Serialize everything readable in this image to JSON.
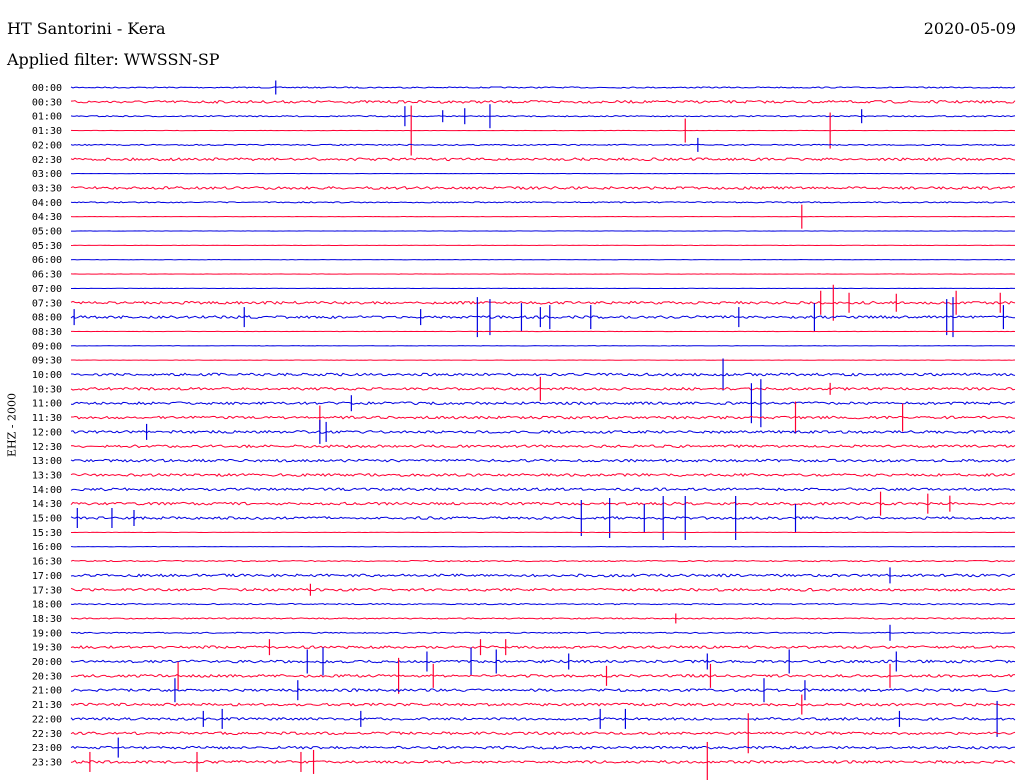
{
  "header": {
    "title": "HT Santorini - Kera",
    "date": "2020-05-09",
    "filter": "Applied filter: WWSSN-SP"
  },
  "chart_data": {
    "type": "line",
    "title": "HT Santorini - Kera",
    "channel_label": "EHZ - 2000",
    "x_unit": "minutes",
    "xlim": [
      0,
      30
    ],
    "row_colors": [
      "#0000e0",
      "#ff0033"
    ],
    "rows": [
      {
        "label": "00:00",
        "activity": "quiet",
        "events": [
          {
            "t": 6.5,
            "amp": 7
          }
        ]
      },
      {
        "label": "00:30",
        "activity": "noisy",
        "events": []
      },
      {
        "label": "01:00",
        "activity": "quiet",
        "events": [
          {
            "t": 10.6,
            "amp": 10
          },
          {
            "t": 11.8,
            "amp": 6
          },
          {
            "t": 12.5,
            "amp": 8
          },
          {
            "t": 13.3,
            "amp": 12
          },
          {
            "t": 25.1,
            "amp": 7
          }
        ]
      },
      {
        "label": "01:30",
        "activity": "flat",
        "events": [
          {
            "t": 10.8,
            "amp": 25
          },
          {
            "t": 19.5,
            "amp": 12
          },
          {
            "t": 24.1,
            "amp": 18
          }
        ]
      },
      {
        "label": "02:00",
        "activity": "quiet",
        "events": [
          {
            "t": 19.9,
            "amp": 7
          }
        ]
      },
      {
        "label": "02:30",
        "activity": "noisy",
        "events": []
      },
      {
        "label": "03:00",
        "activity": "flat",
        "events": []
      },
      {
        "label": "03:30",
        "activity": "noisy",
        "events": []
      },
      {
        "label": "04:00",
        "activity": "quiet",
        "events": []
      },
      {
        "label": "04:30",
        "activity": "flat",
        "events": [
          {
            "t": 23.2,
            "amp": 12
          }
        ]
      },
      {
        "label": "05:00",
        "activity": "flat",
        "events": []
      },
      {
        "label": "05:30",
        "activity": "flat",
        "events": []
      },
      {
        "label": "06:00",
        "activity": "flat",
        "events": []
      },
      {
        "label": "06:30",
        "activity": "flat",
        "events": []
      },
      {
        "label": "07:00",
        "activity": "flat",
        "events": []
      },
      {
        "label": "07:30",
        "activity": "noisy",
        "events": [
          {
            "t": 23.8,
            "amp": 12
          },
          {
            "t": 24.2,
            "amp": 18
          },
          {
            "t": 24.7,
            "amp": 10
          },
          {
            "t": 26.2,
            "amp": 9
          },
          {
            "t": 28.1,
            "amp": 12
          },
          {
            "t": 29.5,
            "amp": 10
          }
        ]
      },
      {
        "label": "08:00",
        "activity": "noisy",
        "events": [
          {
            "t": 0.1,
            "amp": 8
          },
          {
            "t": 5.5,
            "amp": 10
          },
          {
            "t": 11.1,
            "amp": 8
          },
          {
            "t": 12.9,
            "amp": 20
          },
          {
            "t": 13.3,
            "amp": 18
          },
          {
            "t": 14.3,
            "amp": 14
          },
          {
            "t": 14.9,
            "amp": 10
          },
          {
            "t": 15.2,
            "amp": 12
          },
          {
            "t": 16.5,
            "amp": 12
          },
          {
            "t": 21.2,
            "amp": 10
          },
          {
            "t": 23.6,
            "amp": 14
          },
          {
            "t": 27.8,
            "amp": 18
          },
          {
            "t": 28.0,
            "amp": 20
          },
          {
            "t": 29.6,
            "amp": 12
          }
        ]
      },
      {
        "label": "08:30",
        "activity": "flat",
        "events": []
      },
      {
        "label": "09:00",
        "activity": "flat",
        "events": []
      },
      {
        "label": "09:30",
        "activity": "flat",
        "events": []
      },
      {
        "label": "10:00",
        "activity": "noisy",
        "events": [
          {
            "t": 20.7,
            "amp": 16
          }
        ]
      },
      {
        "label": "10:30",
        "activity": "noisy",
        "events": [
          {
            "t": 14.9,
            "amp": 12
          },
          {
            "t": 24.1,
            "amp": 6
          }
        ]
      },
      {
        "label": "11:00",
        "activity": "noisy",
        "events": [
          {
            "t": 8.9,
            "amp": 8
          },
          {
            "t": 21.6,
            "amp": 20
          },
          {
            "t": 21.9,
            "amp": 24
          }
        ]
      },
      {
        "label": "11:30",
        "activity": "noisy",
        "events": [
          {
            "t": 7.9,
            "amp": 12
          },
          {
            "t": 23.0,
            "amp": 16
          },
          {
            "t": 26.4,
            "amp": 14
          }
        ]
      },
      {
        "label": "12:00",
        "activity": "noisy",
        "events": [
          {
            "t": 2.4,
            "amp": 8
          },
          {
            "t": 7.9,
            "amp": 12
          },
          {
            "t": 8.1,
            "amp": 10
          }
        ]
      },
      {
        "label": "12:30",
        "activity": "noisy",
        "events": []
      },
      {
        "label": "13:00",
        "activity": "noisy",
        "events": []
      },
      {
        "label": "13:30",
        "activity": "noisy",
        "events": []
      },
      {
        "label": "14:00",
        "activity": "noisy",
        "events": []
      },
      {
        "label": "14:30",
        "activity": "noisy",
        "events": [
          {
            "t": 25.7,
            "amp": 12
          },
          {
            "t": 27.2,
            "amp": 10
          },
          {
            "t": 27.9,
            "amp": 8
          }
        ]
      },
      {
        "label": "15:00",
        "activity": "noisy",
        "events": [
          {
            "t": 0.2,
            "amp": 10
          },
          {
            "t": 1.3,
            "amp": 10
          },
          {
            "t": 2.0,
            "amp": 8
          },
          {
            "t": 16.2,
            "amp": 18
          },
          {
            "t": 17.1,
            "amp": 20
          },
          {
            "t": 18.2,
            "amp": 14
          },
          {
            "t": 18.8,
            "amp": 22
          },
          {
            "t": 19.5,
            "amp": 22
          },
          {
            "t": 21.1,
            "amp": 22
          },
          {
            "t": 23.0,
            "amp": 14
          }
        ]
      },
      {
        "label": "15:30",
        "activity": "flat",
        "events": []
      },
      {
        "label": "16:00",
        "activity": "flat",
        "events": []
      },
      {
        "label": "16:30",
        "activity": "quiet",
        "events": []
      },
      {
        "label": "17:00",
        "activity": "noisy",
        "events": [
          {
            "t": 26.0,
            "amp": 8
          }
        ]
      },
      {
        "label": "17:30",
        "activity": "noisy",
        "events": [
          {
            "t": 7.6,
            "amp": 6
          }
        ]
      },
      {
        "label": "18:00",
        "activity": "quiet",
        "events": []
      },
      {
        "label": "18:30",
        "activity": "quiet",
        "events": [
          {
            "t": 19.2,
            "amp": 5
          }
        ]
      },
      {
        "label": "19:00",
        "activity": "quiet",
        "events": [
          {
            "t": 26.0,
            "amp": 8
          }
        ]
      },
      {
        "label": "19:30",
        "activity": "noisy",
        "events": [
          {
            "t": 6.3,
            "amp": 8
          },
          {
            "t": 13.0,
            "amp": 8
          },
          {
            "t": 13.8,
            "amp": 8
          }
        ]
      },
      {
        "label": "20:00",
        "activity": "noisy",
        "events": [
          {
            "t": 7.5,
            "amp": 12
          },
          {
            "t": 8.0,
            "amp": 14
          },
          {
            "t": 11.3,
            "amp": 10
          },
          {
            "t": 12.7,
            "amp": 14
          },
          {
            "t": 13.5,
            "amp": 12
          },
          {
            "t": 15.8,
            "amp": 8
          },
          {
            "t": 20.2,
            "amp": 8
          },
          {
            "t": 22.8,
            "amp": 12
          },
          {
            "t": 26.2,
            "amp": 10
          }
        ]
      },
      {
        "label": "20:30",
        "activity": "noisy",
        "events": [
          {
            "t": 3.4,
            "amp": 14
          },
          {
            "t": 10.4,
            "amp": 18
          },
          {
            "t": 11.5,
            "amp": 12
          },
          {
            "t": 17.0,
            "amp": 10
          },
          {
            "t": 20.3,
            "amp": 12
          },
          {
            "t": 26.0,
            "amp": 12
          }
        ]
      },
      {
        "label": "21:00",
        "activity": "noisy",
        "events": [
          {
            "t": 3.3,
            "amp": 12
          },
          {
            "t": 7.2,
            "amp": 10
          },
          {
            "t": 22.0,
            "amp": 12
          },
          {
            "t": 23.3,
            "amp": 10
          }
        ]
      },
      {
        "label": "21:30",
        "activity": "noisy",
        "events": [
          {
            "t": 23.2,
            "amp": 10
          }
        ]
      },
      {
        "label": "22:00",
        "activity": "noisy",
        "events": [
          {
            "t": 4.2,
            "amp": 8
          },
          {
            "t": 4.8,
            "amp": 10
          },
          {
            "t": 9.2,
            "amp": 8
          },
          {
            "t": 16.8,
            "amp": 10
          },
          {
            "t": 17.6,
            "amp": 10
          },
          {
            "t": 26.3,
            "amp": 8
          },
          {
            "t": 29.4,
            "amp": 18
          }
        ]
      },
      {
        "label": "22:30",
        "activity": "noisy",
        "events": [
          {
            "t": 21.5,
            "amp": 20
          }
        ]
      },
      {
        "label": "23:00",
        "activity": "noisy",
        "events": [
          {
            "t": 1.5,
            "amp": 10
          }
        ]
      },
      {
        "label": "23:30",
        "activity": "noisy",
        "events": [
          {
            "t": 0.6,
            "amp": 10
          },
          {
            "t": 4.0,
            "amp": 10
          },
          {
            "t": 7.3,
            "amp": 10
          },
          {
            "t": 7.7,
            "amp": 12
          },
          {
            "t": 20.2,
            "amp": 20
          }
        ]
      }
    ]
  }
}
